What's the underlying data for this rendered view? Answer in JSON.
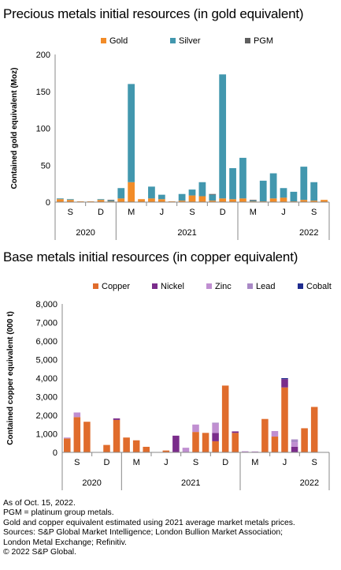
{
  "colors": {
    "gold": "#F28C28",
    "silver": "#4297AE",
    "pgm": "#5F5F5F",
    "copper": "#E06C2C",
    "nickel": "#7A2C8B",
    "zinc": "#C08FD1",
    "lead": "#A989C6",
    "cobalt": "#1F2C8F",
    "axis": "#888888"
  },
  "chart_data": [
    {
      "type": "bar",
      "stacked": true,
      "title": "Precious metals initial resources (in gold equivalent)",
      "ylabel": "Contained gold equivalent (Moz)",
      "ylim": [
        0,
        200
      ],
      "yticks": [
        "0",
        "50",
        "100",
        "150",
        "200"
      ],
      "legend_position": "top",
      "x": [
        "2020-07",
        "2020-08",
        "2020-09",
        "2020-10",
        "2020-11",
        "2020-12",
        "2021-01",
        "2021-02",
        "2021-03",
        "2021-04",
        "2021-05",
        "2021-06",
        "2021-07",
        "2021-08",
        "2021-09",
        "2021-10",
        "2021-11",
        "2021-12",
        "2022-01",
        "2022-02",
        "2022-03",
        "2022-04",
        "2022-05",
        "2022-06",
        "2022-07",
        "2022-08",
        "2022-09"
      ],
      "xtick_labels": [
        "",
        "S",
        "",
        "",
        "D",
        "",
        "",
        "M",
        "",
        "",
        "J",
        "",
        "",
        "S",
        "",
        "",
        "D",
        "",
        "",
        "M",
        "",
        "",
        "J",
        "",
        "",
        "S",
        ""
      ],
      "year_labels": [
        {
          "label": "2020",
          "col": 3
        },
        {
          "label": "2021",
          "col": 13
        },
        {
          "label": "2022",
          "col": 25
        }
      ],
      "series": [
        {
          "name": "Gold",
          "key": "gold",
          "values": [
            4,
            3,
            1,
            1,
            3,
            1,
            5,
            27,
            4,
            5,
            4,
            1,
            2,
            9,
            8,
            2,
            5,
            4,
            5,
            1,
            1,
            5,
            6,
            1,
            3,
            2,
            3
          ]
        },
        {
          "name": "Silver",
          "key": "silver",
          "values": [
            1,
            1,
            0,
            0,
            1,
            1,
            14,
            133,
            0,
            16,
            6,
            0,
            9,
            8,
            19,
            8,
            168,
            42,
            55,
            1,
            28,
            34,
            13,
            13,
            45,
            25,
            0
          ]
        },
        {
          "name": "PGM",
          "key": "pgm",
          "values": [
            0,
            0,
            0,
            0,
            0,
            1,
            0,
            0,
            0,
            0,
            0,
            0,
            0,
            0,
            0,
            1,
            0,
            0,
            0,
            1,
            0,
            0,
            0,
            0,
            0,
            0,
            0
          ]
        }
      ]
    },
    {
      "type": "bar",
      "stacked": true,
      "title": "Base metals initial resources (in copper equivalent)",
      "ylabel": "Contained copper equivalent (000 t)",
      "ylim": [
        0,
        8000
      ],
      "yticks": [
        "0",
        "1,000",
        "2,000",
        "3,000",
        "4,000",
        "5,000",
        "6,000",
        "7,000",
        "8,000"
      ],
      "legend_position": "top",
      "x": [
        "2020-07",
        "2020-08",
        "2020-09",
        "2020-10",
        "2020-11",
        "2020-12",
        "2021-01",
        "2021-02",
        "2021-03",
        "2021-04",
        "2021-05",
        "2021-06",
        "2021-07",
        "2021-08",
        "2021-09",
        "2021-10",
        "2021-11",
        "2021-12",
        "2022-01",
        "2022-02",
        "2022-03",
        "2022-04",
        "2022-05",
        "2022-06",
        "2022-07",
        "2022-08",
        "2022-09"
      ],
      "xtick_labels": [
        "",
        "S",
        "",
        "",
        "D",
        "",
        "",
        "M",
        "",
        "",
        "J",
        "",
        "",
        "S",
        "",
        "",
        "D",
        "",
        "",
        "M",
        "",
        "",
        "J",
        "",
        "",
        "S",
        ""
      ],
      "year_labels": [
        {
          "label": "2020",
          "col": 3
        },
        {
          "label": "2021",
          "col": 13
        },
        {
          "label": "2022",
          "col": 25
        }
      ],
      "series": [
        {
          "name": "Copper",
          "key": "copper",
          "values": [
            750,
            1900,
            1650,
            0,
            400,
            1750,
            800,
            650,
            300,
            0,
            100,
            0,
            0,
            1100,
            1050,
            600,
            3600,
            1050,
            0,
            0,
            1800,
            850,
            3500,
            0,
            1300,
            2450,
            0
          ]
        },
        {
          "name": "Nickel",
          "key": "nickel",
          "values": [
            0,
            0,
            0,
            0,
            0,
            80,
            0,
            0,
            0,
            0,
            0,
            900,
            0,
            0,
            0,
            450,
            0,
            80,
            0,
            0,
            0,
            0,
            450,
            300,
            0,
            0,
            0
          ]
        },
        {
          "name": "Zinc",
          "key": "zinc",
          "values": [
            50,
            250,
            0,
            0,
            0,
            0,
            0,
            0,
            0,
            0,
            0,
            0,
            250,
            400,
            0,
            500,
            0,
            0,
            60,
            50,
            0,
            300,
            0,
            250,
            0,
            0,
            0
          ]
        },
        {
          "name": "Lead",
          "key": "lead",
          "values": [
            0,
            0,
            0,
            0,
            0,
            0,
            0,
            0,
            0,
            0,
            0,
            0,
            0,
            0,
            0,
            50,
            0,
            0,
            0,
            0,
            0,
            0,
            0,
            150,
            0,
            0,
            0
          ]
        },
        {
          "name": "Cobalt",
          "key": "cobalt",
          "values": [
            0,
            0,
            0,
            0,
            0,
            0,
            0,
            0,
            0,
            0,
            0,
            0,
            0,
            0,
            0,
            0,
            0,
            0,
            0,
            0,
            0,
            0,
            50,
            0,
            0,
            0,
            0
          ]
        }
      ]
    }
  ],
  "footnotes": [
    "As of Oct. 15, 2022.",
    "PGM = platinum group metals.",
    "Gold and copper equivalent estimated using 2021 average market metals prices.",
    "Sources: S&P Global Market Intelligence; London Bullion Market Association;",
    "London Metal Exchange; Refinitiv.",
    "© 2022 S&P Global."
  ]
}
